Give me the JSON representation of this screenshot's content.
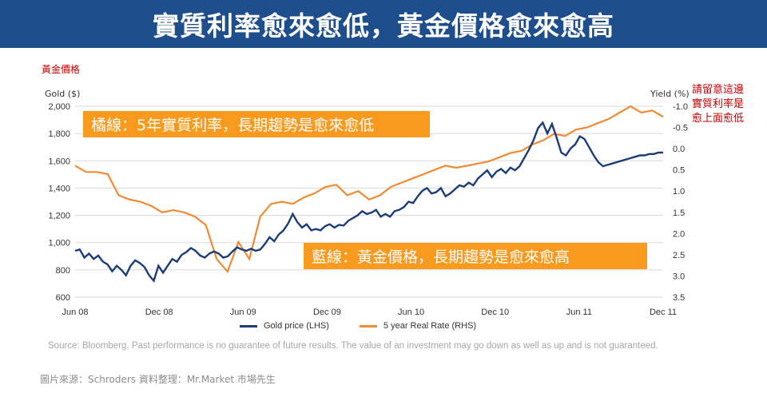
{
  "banner": {
    "title": "實質利率愈來愈低，黃金價格愈來愈高"
  },
  "notes": {
    "gold_price_label": "黃金價格",
    "right_note_lines": [
      "請留意這邊",
      "實質利率是",
      "愈上面愈低"
    ]
  },
  "callouts": {
    "orange": "橘線：5年實質利率，長期趨勢是愈來愈低",
    "blue": "藍線：黃金價格，長期趨勢是愈來愈高"
  },
  "source": "Source: Bloomberg. Past performance is no guarantee of future results. The value of an investment may go down as well as up and is not guaranteed.",
  "credit": "圖片來源：Schroders     資料整理：Mr.Market  市場先生",
  "colors": {
    "banner": "#1f4e8c",
    "gold_line": "#1a3c78",
    "rate_line": "#f08a33",
    "note_red": "#c00000",
    "callout": "#f79a1d"
  },
  "chart_data": {
    "type": "line",
    "xlabel_ticks": [
      "Jun 08",
      "Dec 08",
      "Jun 09",
      "Dec 09",
      "Jun 10",
      "Dec 10",
      "Jun 11",
      "Dec 11"
    ],
    "left_axis": {
      "title": "Gold ($)",
      "ticks": [
        "600",
        "800",
        "1,000",
        "1,200",
        "1,400",
        "1,600",
        "1,800",
        "2,000"
      ],
      "ylim": [
        600,
        2000
      ]
    },
    "right_axis": {
      "title": "Yield (%)",
      "inverted": true,
      "ticks": [
        "-1.0",
        "-0.5",
        "0.0",
        "0.5",
        "1.0",
        "1.5",
        "2.0",
        "2.5",
        "3.0",
        "3.5"
      ],
      "ylim": [
        3.5,
        -1.0
      ]
    },
    "grid": true,
    "legend_position": "bottom",
    "series": [
      {
        "name": "Gold price (LHS)",
        "axis": "left",
        "x": [
          0,
          0.3,
          0.6,
          1,
          1.3,
          1.6,
          2,
          2.3,
          2.7,
          3,
          3.3,
          3.5,
          3.8,
          4,
          4.3,
          4.6,
          5,
          5.3,
          5.6,
          6,
          6.3,
          6.6,
          7,
          7.3,
          7.6,
          8,
          8.3,
          8.6,
          9,
          9.3,
          9.6,
          10,
          10.3,
          10.6,
          11,
          11.3,
          11.6,
          12,
          12.3,
          12.6,
          13,
          13.3,
          13.6,
          14,
          14.3,
          14.6,
          15,
          15.3,
          15.6,
          16,
          16.3,
          16.6,
          17,
          17.3,
          17.6,
          18,
          18.3,
          18.6,
          19,
          19.3,
          19.6,
          20,
          20.3,
          20.6,
          21,
          21.3,
          21.6,
          22,
          22.3,
          22.6,
          23,
          23.3,
          23.6,
          24,
          24.3,
          24.6,
          25,
          25.3,
          25.6,
          26,
          26.3,
          26.6,
          27,
          27.3,
          27.6,
          28,
          28.3,
          28.6,
          29,
          29.3,
          29.6,
          30,
          30.3,
          30.6,
          31,
          31.3,
          31.6,
          32,
          32.3,
          32.6,
          33,
          33.3,
          33.6,
          34,
          34.3,
          34.6,
          35,
          35.3,
          35.6,
          36,
          36.3,
          36.6,
          37,
          37.3,
          37.6,
          38,
          38.3,
          38.6,
          39,
          39.3,
          39.6,
          40,
          40.3,
          40.6,
          41,
          41.3,
          41.6,
          42
        ],
        "values": [
          940,
          950,
          890,
          920,
          880,
          905,
          860,
          840,
          790,
          830,
          800,
          760,
          830,
          870,
          850,
          820,
          760,
          720,
          830,
          780,
          830,
          880,
          860,
          910,
          930,
          960,
          940,
          905,
          890,
          920,
          935,
          920,
          890,
          900,
          935,
          965,
          950,
          940,
          955,
          940,
          950,
          990,
          1040,
          1010,
          1060,
          1090,
          1140,
          1210,
          1150,
          1110,
          1135,
          1090,
          1100,
          1090,
          1120,
          1135,
          1110,
          1130,
          1125,
          1160,
          1180,
          1200,
          1230,
          1210,
          1220,
          1240,
          1190,
          1210,
          1190,
          1230,
          1240,
          1260,
          1300,
          1290,
          1340,
          1380,
          1400,
          1360,
          1370,
          1400,
          1340,
          1360,
          1390,
          1420,
          1410,
          1440,
          1420,
          1470,
          1500,
          1530,
          1480,
          1520,
          1540,
          1510,
          1550,
          1530,
          1560,
          1620,
          1680,
          1750,
          1840,
          1880,
          1800,
          1870,
          1770,
          1660,
          1640,
          1690,
          1720,
          1780,
          1760,
          1700,
          1640,
          1590,
          1560,
          1570,
          1580,
          1590,
          1600,
          1610,
          1620,
          1630,
          1640,
          1640,
          1650,
          1650,
          1660,
          1660
        ],
        "note": "values trimmed to 42 data points after x index 42 end"
      },
      {
        "name": "5 year Real Rate (RHS)",
        "axis": "right",
        "values": [
          0.4,
          0.55,
          0.55,
          0.6,
          1.1,
          1.2,
          1.25,
          1.35,
          1.5,
          1.45,
          1.5,
          1.6,
          1.8,
          2.6,
          2.9,
          2.2,
          2.6,
          1.6,
          1.3,
          1.25,
          1.3,
          1.15,
          1.05,
          0.9,
          0.85,
          1.1,
          1.0,
          1.2,
          1.1,
          0.9,
          0.8,
          0.7,
          0.6,
          0.5,
          0.4,
          0.45,
          0.4,
          0.35,
          0.3,
          0.2,
          0.1,
          0.05,
          -0.1,
          -0.2,
          -0.35,
          -0.3,
          -0.45,
          -0.5,
          -0.6,
          -0.7,
          -0.85,
          -1.0,
          -0.85,
          -0.9,
          -0.75
        ]
      }
    ]
  }
}
